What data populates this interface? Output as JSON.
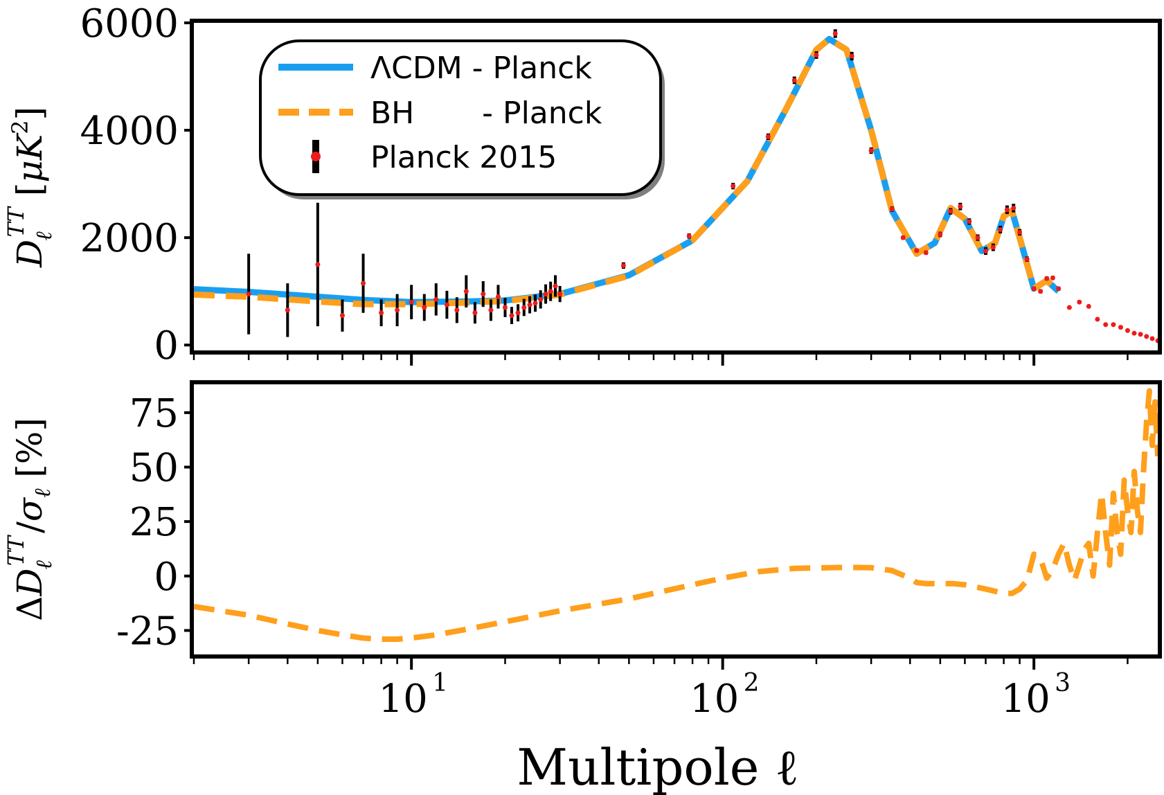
{
  "colors": {
    "lcdm": "#1a9ff0",
    "bh": "#ff9f1c",
    "data_point": "#ee1c1c",
    "error_bar": "#000000",
    "frame": "#000000"
  },
  "chart_data": [
    {
      "type": "line",
      "panel": "top",
      "ylabel": "D_ℓ^TT [μK²]",
      "xscale": "log",
      "xlim": [
        2,
        2500
      ],
      "ylim": [
        -100,
        6000
      ],
      "yticks": [
        0,
        2000,
        4000,
        6000
      ],
      "ytick_labels": [
        "0",
        "2000",
        "4000",
        "6000"
      ],
      "legend_position": "upper-left",
      "legend": [
        {
          "label": "ΛCDM - Planck",
          "style": "solid",
          "color": "#1a9ff0"
        },
        {
          "label": "BH       - Planck",
          "style": "dashed",
          "color": "#ff9f1c"
        },
        {
          "label": "Planck 2015",
          "style": "errorbar",
          "color": "#ee1c1c"
        }
      ],
      "series": [
        {
          "name": "ΛCDM - Planck",
          "x": [
            2,
            3,
            5,
            7,
            10,
            15,
            20,
            30,
            50,
            80,
            120,
            160,
            200,
            220,
            250,
            300,
            350,
            420,
            480,
            540,
            600,
            680,
            750,
            800,
            850,
            900,
            1000,
            1100,
            1200
          ],
          "y": [
            1040,
            990,
            900,
            840,
            800,
            810,
            830,
            950,
            1300,
            1950,
            3050,
            4400,
            5500,
            5700,
            5500,
            4000,
            2500,
            1700,
            1900,
            2550,
            2350,
            1750,
            1900,
            2400,
            2500,
            2000,
            1050,
            1200,
            1000
          ]
        },
        {
          "name": "BH       - Planck",
          "x": [
            2,
            3,
            5,
            7,
            10,
            15,
            20,
            30,
            50,
            80,
            120,
            160,
            200,
            220,
            250,
            300,
            350,
            420,
            480,
            540,
            600,
            680,
            750,
            800,
            850,
            900,
            1000,
            1100,
            1200
          ],
          "y": [
            940,
            900,
            810,
            760,
            760,
            790,
            820,
            940,
            1290,
            1950,
            3050,
            4400,
            5500,
            5700,
            5500,
            4000,
            2500,
            1700,
            1900,
            2550,
            2350,
            1750,
            1900,
            2400,
            2500,
            2000,
            1050,
            1200,
            1000
          ]
        },
        {
          "name": "Planck 2015",
          "x": [
            3,
            4,
            5,
            6,
            7,
            8,
            9,
            10,
            11,
            12,
            13,
            14,
            15,
            16,
            17,
            18,
            19,
            20,
            21,
            22,
            23,
            24,
            25,
            26,
            27,
            28,
            29,
            30,
            48,
            78,
            108,
            140,
            170,
            200,
            230,
            260,
            300,
            350,
            380,
            420,
            450,
            500,
            540,
            580,
            620,
            660,
            700,
            740,
            780,
            820,
            860,
            900,
            950,
            1000,
            1050,
            1100,
            1150,
            1200,
            1300,
            1400,
            1500,
            1600,
            1700,
            1800,
            1900,
            2000,
            2100,
            2200,
            2300,
            2400,
            2500
          ],
          "y": [
            950,
            650,
            1500,
            550,
            1150,
            600,
            650,
            800,
            700,
            850,
            750,
            650,
            1000,
            600,
            950,
            650,
            900,
            700,
            550,
            600,
            700,
            750,
            780,
            850,
            950,
            1000,
            1100,
            950,
            1480,
            2030,
            2960,
            3880,
            4930,
            5400,
            5800,
            5380,
            3620,
            2530,
            2000,
            1760,
            1720,
            2060,
            2490,
            2580,
            2300,
            2000,
            1750,
            1820,
            2150,
            2520,
            2550,
            2100,
            1600,
            1050,
            1000,
            1240,
            1250,
            1050,
            700,
            800,
            720,
            480,
            380,
            380,
            330,
            270,
            220,
            200,
            160,
            120,
            80
          ],
          "err": [
            750,
            500,
            1150,
            300,
            550,
            250,
            300,
            320,
            250,
            300,
            260,
            240,
            300,
            200,
            240,
            200,
            220,
            180,
            160,
            160,
            160,
            160,
            160,
            170,
            180,
            180,
            200,
            150,
            60,
            50,
            60,
            60,
            70,
            70,
            80,
            80,
            60,
            50,
            40,
            40,
            40,
            50,
            60,
            70,
            60,
            60,
            70,
            70,
            70,
            80,
            80,
            60,
            50,
            40,
            40,
            40,
            40,
            40,
            30,
            30,
            30,
            30,
            30,
            30,
            30,
            30,
            30,
            30,
            30,
            30,
            30
          ]
        }
      ]
    },
    {
      "type": "line",
      "panel": "bottom",
      "xlabel": "Multipole ℓ",
      "ylabel": "ΔD_ℓ^TT/σ_ℓ [%]",
      "xscale": "log",
      "xlim": [
        2,
        2500
      ],
      "ylim": [
        -36,
        88
      ],
      "xticks": [
        10,
        100,
        1000
      ],
      "xtick_labels": [
        "10",
        "10",
        "10"
      ],
      "xtick_exponents": [
        "1",
        "2",
        "3"
      ],
      "yticks": [
        -25,
        0,
        25,
        50,
        75
      ],
      "ytick_labels": [
        "-25",
        "0",
        "25",
        "50",
        "75"
      ],
      "series": [
        {
          "name": "BH",
          "x": [
            2,
            3,
            4,
            5,
            6,
            7,
            8,
            9,
            10,
            12,
            15,
            20,
            30,
            50,
            80,
            100,
            130,
            170,
            200,
            250,
            300,
            350,
            400,
            420,
            450,
            500,
            550,
            600,
            650,
            700,
            750,
            800,
            850,
            900,
            950,
            1000,
            1050,
            1100,
            1150,
            1200,
            1250,
            1300,
            1350,
            1400,
            1450,
            1500,
            1550,
            1600,
            1650,
            1700,
            1750,
            1800,
            1850,
            1900,
            1950,
            2000,
            2050,
            2100,
            2150,
            2200,
            2250,
            2300,
            2350,
            2400,
            2450,
            2500
          ],
          "y": [
            -14,
            -18,
            -22,
            -25,
            -27,
            -28.5,
            -29,
            -29,
            -28.5,
            -27,
            -24.5,
            -21,
            -16,
            -10.5,
            -4,
            -1,
            2,
            3.5,
            3.7,
            4,
            3.8,
            2.5,
            -1,
            -3,
            -3.5,
            -3.5,
            -3.5,
            -4,
            -5,
            -6,
            -7,
            -8,
            -8,
            -6,
            -2,
            10,
            8,
            -1,
            3,
            10,
            15,
            5,
            -2,
            5,
            12,
            15,
            0,
            20,
            38,
            20,
            5,
            38,
            20,
            10,
            44,
            30,
            20,
            48,
            30,
            20,
            48,
            70,
            85,
            60,
            80,
            55
          ]
        }
      ]
    }
  ]
}
